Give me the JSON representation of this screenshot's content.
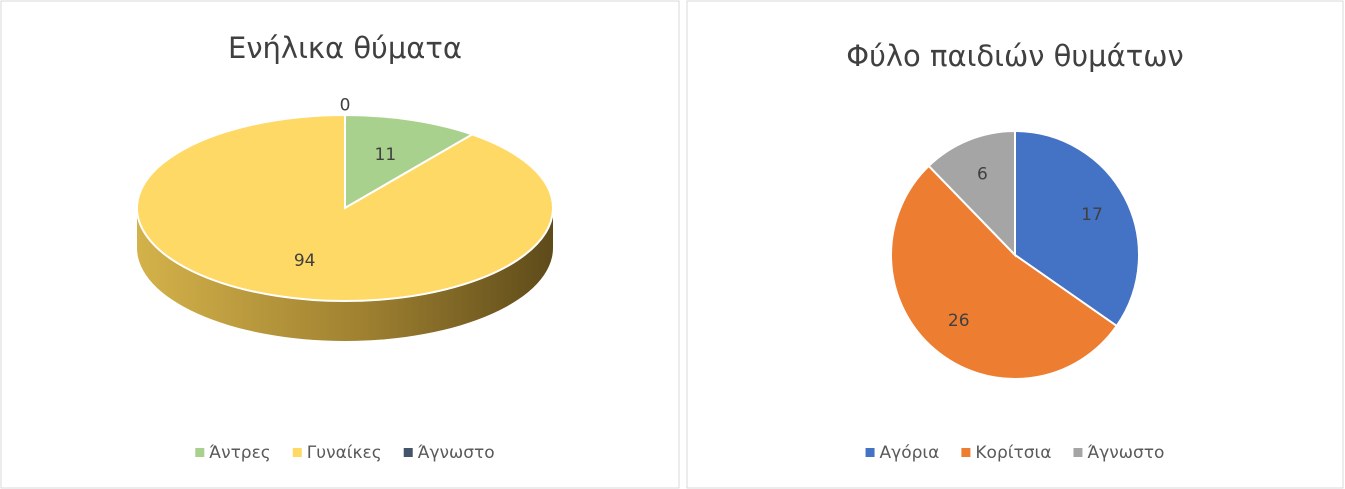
{
  "chart_data": [
    {
      "type": "pie3d",
      "title": "Ενήλικα θύματα",
      "categories": [
        "Άντρες",
        "Γυναίκες",
        "Άγνωστο"
      ],
      "values": [
        11,
        94,
        0
      ],
      "colors": [
        "#a9d18e",
        "#ffd966",
        "#44546a"
      ],
      "legend": "bottom"
    },
    {
      "type": "pie",
      "title": "Φύλο παιδιών θυμάτων",
      "categories": [
        "Αγόρια",
        "Κορίτσια",
        "Άγνωστο"
      ],
      "values": [
        17,
        26,
        6
      ],
      "colors": [
        "#4472c4",
        "#ed7d31",
        "#a5a5a5"
      ],
      "legend": "bottom"
    }
  ]
}
